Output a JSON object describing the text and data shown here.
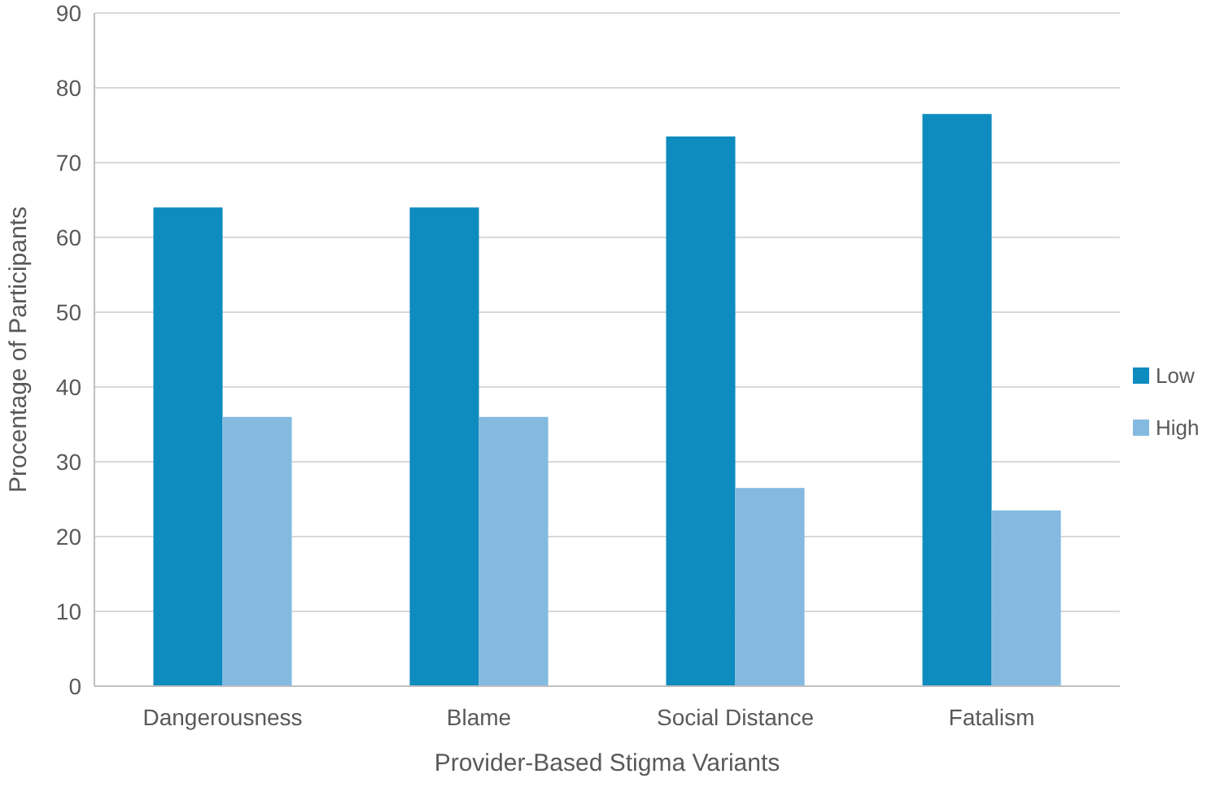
{
  "chart_data": {
    "type": "bar",
    "xlabel": "Provider-Based Stigma Variants",
    "ylabel": "Procentage of Participants",
    "categories": [
      "Dangerousness",
      "Blame",
      "Social Distance",
      "Fatalism"
    ],
    "series": [
      {
        "name": "Low",
        "color": "#0e8bbf",
        "values": [
          64,
          64,
          73.5,
          76.5
        ]
      },
      {
        "name": "High",
        "color": "#84bae0",
        "values": [
          36,
          36,
          26.5,
          23.5
        ]
      }
    ],
    "ylim": [
      0,
      90
    ],
    "yticks": [
      0,
      10,
      20,
      30,
      40,
      50,
      60,
      70,
      80,
      90
    ],
    "grid": "y",
    "legend": "right"
  }
}
